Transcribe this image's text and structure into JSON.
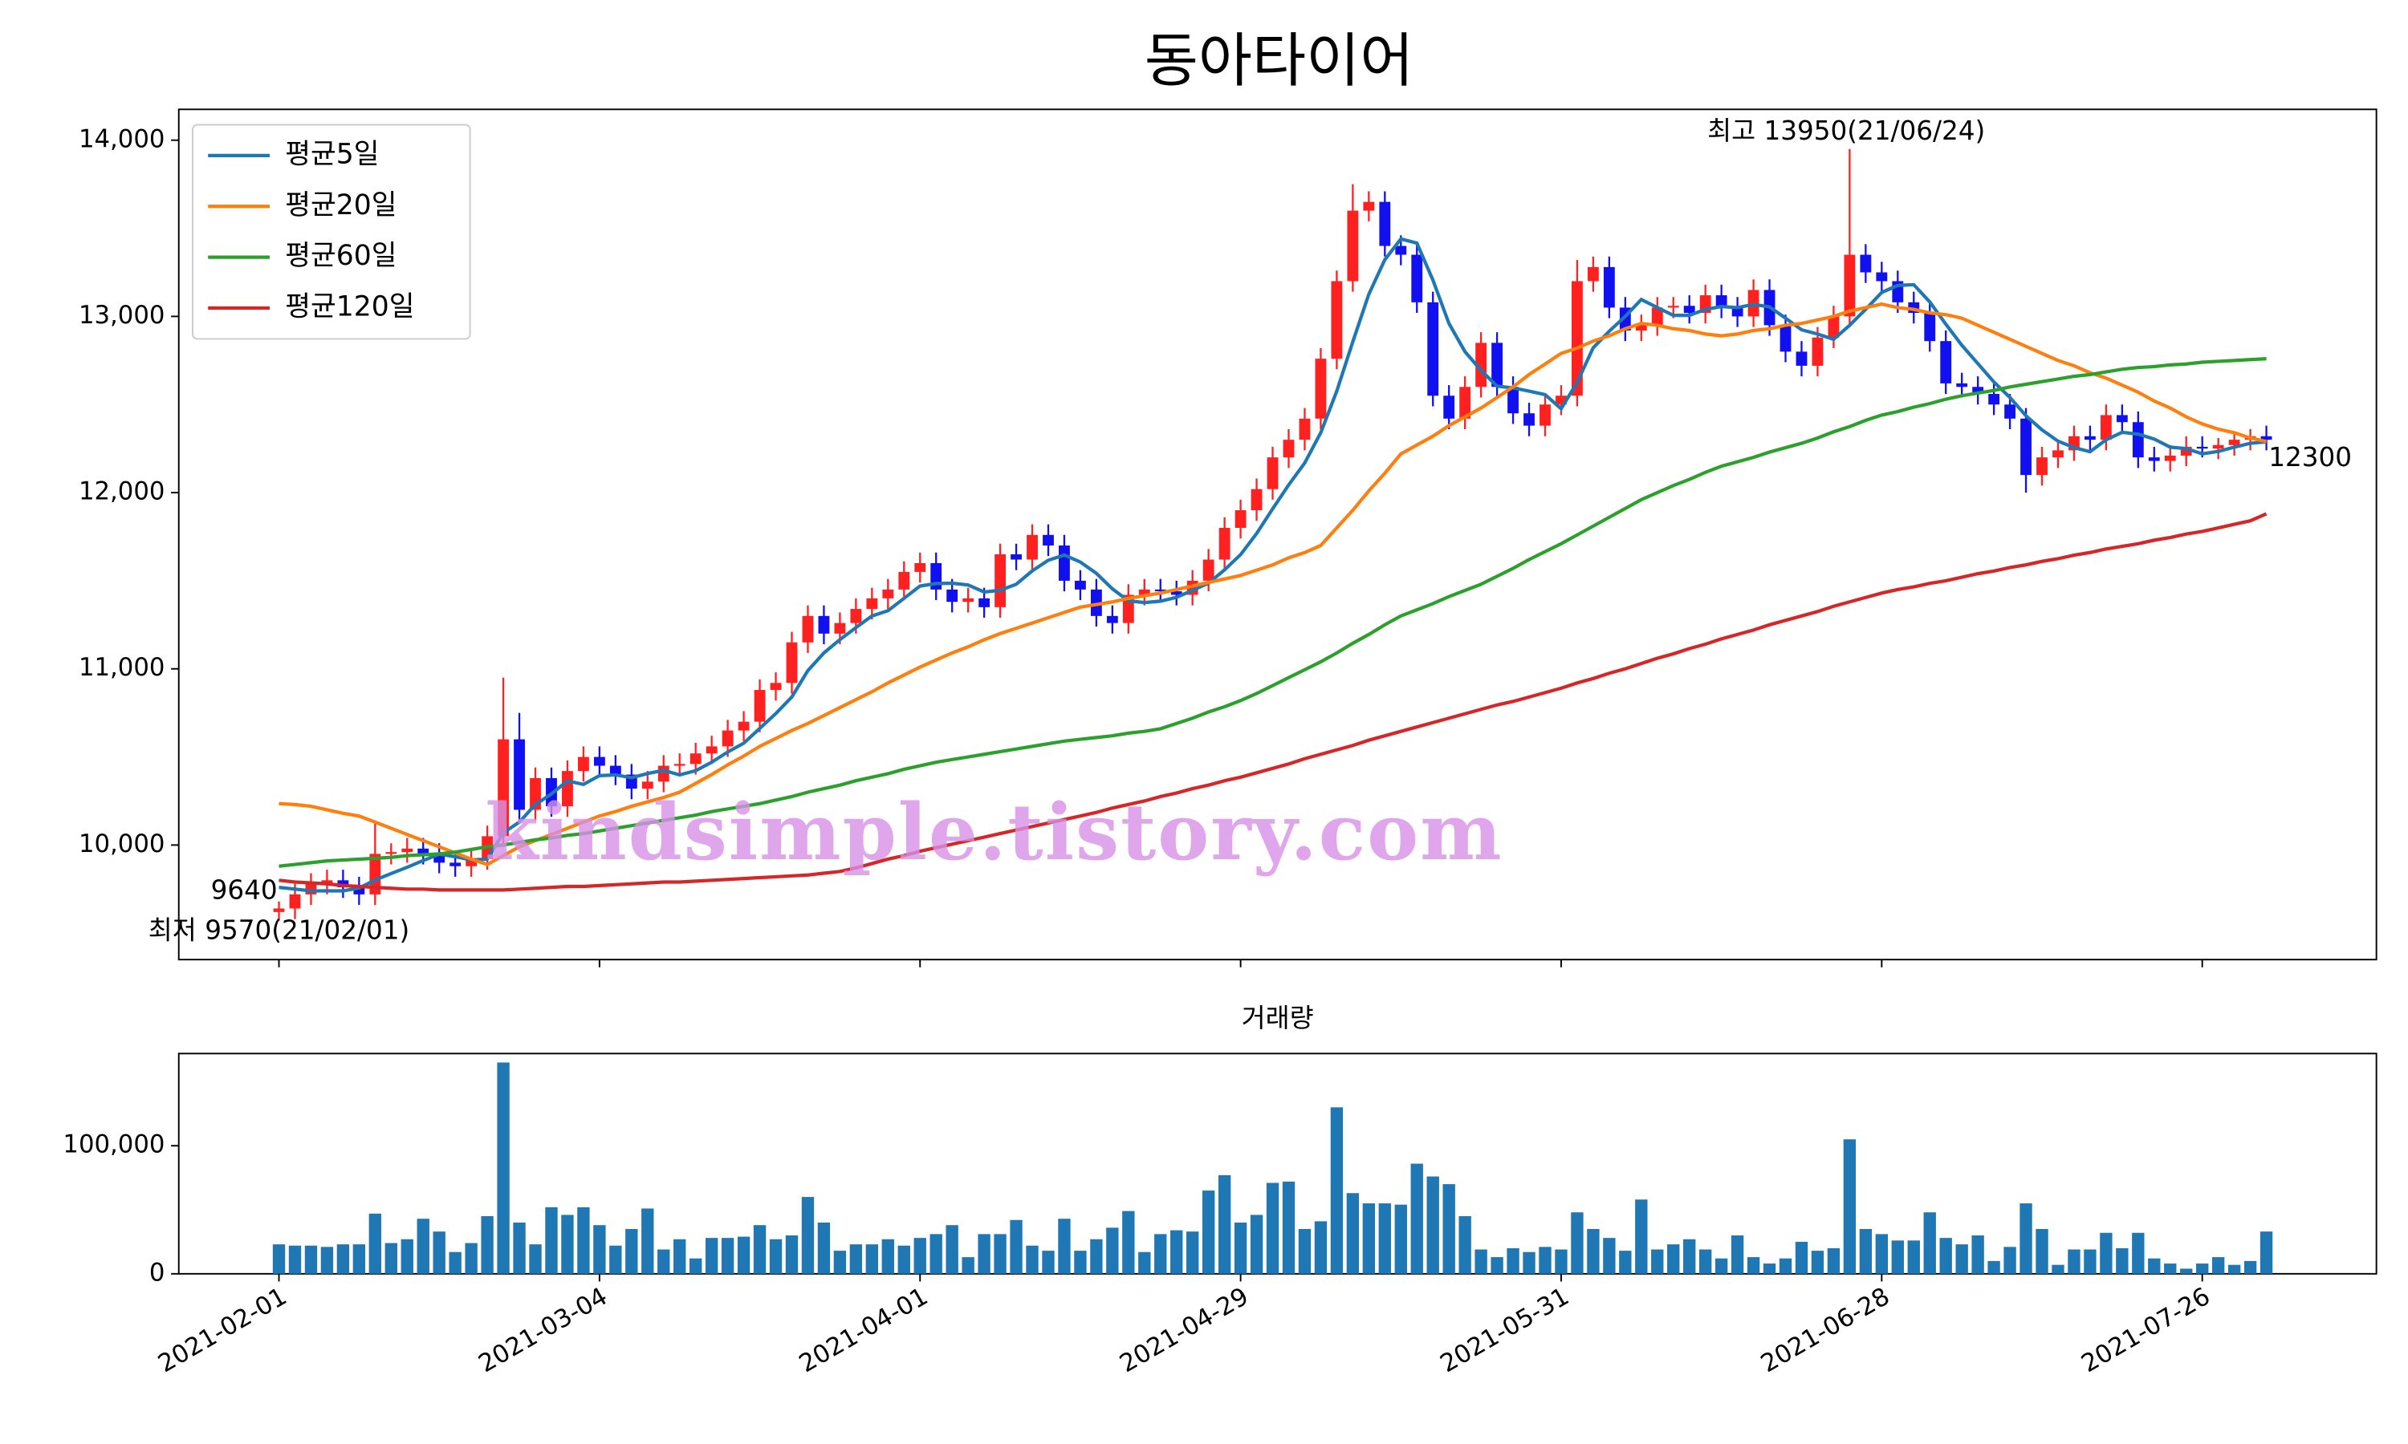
{
  "chart_data": {
    "type": "candlestick",
    "title": "동아타이어",
    "categories": [
      "2021-02-01",
      null,
      null,
      null,
      null,
      null,
      null,
      null,
      null,
      null,
      null,
      null,
      null,
      null,
      null,
      null,
      null,
      null,
      null,
      null,
      "2021-03-04",
      null,
      null,
      null,
      null,
      null,
      null,
      null,
      null,
      null,
      null,
      null,
      null,
      null,
      null,
      null,
      null,
      null,
      null,
      null,
      "2021-04-01",
      null,
      null,
      null,
      null,
      null,
      null,
      null,
      null,
      null,
      null,
      null,
      null,
      null,
      null,
      null,
      null,
      null,
      null,
      null,
      "2021-04-29",
      null,
      null,
      null,
      null,
      null,
      null,
      null,
      null,
      null,
      null,
      null,
      null,
      null,
      null,
      null,
      null,
      null,
      null,
      null,
      "2021-05-31",
      null,
      null,
      null,
      null,
      null,
      null,
      null,
      null,
      null,
      null,
      null,
      null,
      null,
      null,
      null,
      null,
      null,
      null,
      null,
      "2021-06-28",
      null,
      null,
      null,
      null,
      null,
      null,
      null,
      null,
      null,
      null,
      null,
      null,
      null,
      null,
      null,
      null,
      null,
      null,
      null,
      "2021-07-26",
      null,
      null,
      null,
      null
    ],
    "open": [
      9620,
      9640,
      9720,
      9780,
      9800,
      9760,
      9720,
      9950,
      9960,
      9980,
      9950,
      9900,
      9880,
      9920,
      10050,
      10600,
      10200,
      10380,
      10220,
      10420,
      10500,
      10450,
      10400,
      10320,
      10360,
      10450,
      10460,
      10520,
      10560,
      10650,
      10700,
      10880,
      10920,
      11150,
      11300,
      11200,
      11260,
      11340,
      11400,
      11450,
      11550,
      11600,
      11450,
      11380,
      11400,
      11350,
      11650,
      11620,
      11760,
      11700,
      11500,
      11450,
      11300,
      11260,
      11420,
      11450,
      11440,
      11420,
      11500,
      11620,
      11800,
      11900,
      12020,
      12200,
      12300,
      12420,
      12760,
      13200,
      13600,
      13650,
      13400,
      13350,
      13080,
      12550,
      12420,
      12600,
      12850,
      12600,
      12450,
      12380,
      12500,
      12550,
      13200,
      13280,
      13050,
      12920,
      12950,
      13050,
      13060,
      13020,
      13120,
      13050,
      13000,
      13150,
      12950,
      12800,
      12720,
      12880,
      13000,
      13350,
      13250,
      13200,
      13080,
      13020,
      12860,
      12620,
      12600,
      12560,
      12500,
      12420,
      12100,
      12200,
      12240,
      12320,
      12300,
      12440,
      12400,
      12200,
      12180,
      12210,
      12260,
      12250,
      12270,
      12300,
      12320
    ],
    "high": [
      9680,
      9780,
      9840,
      9860,
      9860,
      9820,
      10140,
      10010,
      10040,
      10040,
      10010,
      9960,
      9980,
      10110,
      10950,
      10750,
      10440,
      10440,
      10480,
      10560,
      10560,
      10510,
      10460,
      10420,
      10510,
      10520,
      10580,
      10620,
      10710,
      10760,
      10940,
      10980,
      11210,
      11360,
      11360,
      11320,
      11400,
      11460,
      11510,
      11610,
      11660,
      11660,
      11510,
      11460,
      11460,
      11710,
      11710,
      11820,
      11820,
      11760,
      11560,
      11510,
      11360,
      11480,
      11510,
      11510,
      11500,
      11560,
      11680,
      11860,
      11960,
      12080,
      12260,
      12360,
      12480,
      12820,
      13260,
      13750,
      13710,
      13710,
      13460,
      13410,
      13140,
      12610,
      12660,
      12910,
      12910,
      12660,
      12510,
      12560,
      12610,
      13320,
      13340,
      13340,
      13110,
      13010,
      13110,
      13110,
      13120,
      13180,
      13180,
      13110,
      13210,
      13210,
      13010,
      12860,
      12940,
      13060,
      13950,
      13410,
      13310,
      13260,
      13140,
      13080,
      12920,
      12680,
      12660,
      12620,
      12560,
      12480,
      12260,
      12300,
      12380,
      12380,
      12500,
      12500,
      12460,
      12260,
      12270,
      12320,
      12320,
      12310,
      12330,
      12360,
      12380
    ],
    "low": [
      9570,
      9580,
      9660,
      9720,
      9700,
      9660,
      9660,
      9890,
      9900,
      9890,
      9840,
      9820,
      9820,
      9860,
      9990,
      10140,
      10140,
      10160,
      10160,
      10360,
      10390,
      10340,
      10260,
      10260,
      10300,
      10390,
      10400,
      10460,
      10500,
      10590,
      10640,
      10820,
      10860,
      11090,
      11140,
      11140,
      11200,
      11280,
      11340,
      11390,
      11490,
      11390,
      11320,
      11320,
      11290,
      11290,
      11560,
      11560,
      11640,
      11440,
      11390,
      11240,
      11200,
      11200,
      11360,
      11390,
      11360,
      11360,
      11440,
      11560,
      11740,
      11840,
      11960,
      12140,
      12240,
      12360,
      12700,
      13140,
      13540,
      13340,
      13290,
      13020,
      12490,
      12360,
      12360,
      12540,
      12540,
      12390,
      12320,
      12320,
      12440,
      12490,
      13140,
      12990,
      12860,
      12860,
      12890,
      12990,
      12960,
      12960,
      12990,
      12940,
      12940,
      12890,
      12740,
      12660,
      12660,
      12820,
      12940,
      13190,
      13140,
      13020,
      12960,
      12800,
      12560,
      12540,
      12500,
      12440,
      12360,
      12000,
      12040,
      12140,
      12180,
      12240,
      12240,
      12340,
      12140,
      12120,
      12120,
      12150,
      12200,
      12190,
      12210,
      12240,
      12240
    ],
    "close": [
      9640,
      9720,
      9780,
      9800,
      9760,
      9720,
      9950,
      9960,
      9980,
      9950,
      9900,
      9880,
      9920,
      10050,
      10600,
      10200,
      10380,
      10220,
      10420,
      10500,
      10450,
      10400,
      10320,
      10360,
      10450,
      10460,
      10520,
      10560,
      10650,
      10700,
      10880,
      10920,
      11150,
      11300,
      11200,
      11260,
      11340,
      11400,
      11450,
      11550,
      11600,
      11450,
      11380,
      11400,
      11350,
      11650,
      11620,
      11760,
      11700,
      11500,
      11450,
      11300,
      11260,
      11420,
      11450,
      11440,
      11420,
      11500,
      11620,
      11800,
      11900,
      12020,
      12200,
      12300,
      12420,
      12760,
      13200,
      13600,
      13650,
      13400,
      13350,
      13080,
      12550,
      12420,
      12600,
      12850,
      12600,
      12450,
      12380,
      12500,
      12550,
      13200,
      13280,
      13050,
      12920,
      12950,
      13050,
      13060,
      13020,
      13120,
      13050,
      13000,
      13150,
      12950,
      12800,
      12720,
      12880,
      13000,
      13350,
      13250,
      13200,
      13080,
      13020,
      12860,
      12620,
      12600,
      12560,
      12500,
      12420,
      12100,
      12200,
      12240,
      12320,
      12300,
      12440,
      12400,
      12200,
      12180,
      12210,
      12260,
      12250,
      12270,
      12300,
      12320,
      12300
    ],
    "up_color": "#ff2020",
    "down_color": "#1010f0",
    "ylim": [
      9350,
      14175
    ],
    "yticks": [
      {
        "value": 10000,
        "label": "10,000"
      },
      {
        "value": 11000,
        "label": "11,000"
      },
      {
        "value": 12000,
        "label": "12,000"
      },
      {
        "value": 13000,
        "label": "13,000"
      },
      {
        "value": 14000,
        "label": "14,000"
      }
    ],
    "legend": "upper left",
    "moving_averages": [
      {
        "name": "평균5일",
        "color": "#1f77b4",
        "values": [
          9760,
          9750,
          9740,
          9740,
          9740,
          9756,
          9802,
          9838,
          9874,
          9912,
          9948,
          9934,
          9916,
          9920,
          10070,
          10130,
          10230,
          10290,
          10364,
          10344,
          10394,
          10398,
          10382,
          10406,
          10424,
          10398,
          10422,
          10470,
          10528,
          10578,
          10662,
          10746,
          10840,
          10990,
          11090,
          11166,
          11234,
          11300,
          11330,
          11400,
          11470,
          11484,
          11486,
          11476,
          11436,
          11446,
          11480,
          11556,
          11616,
          11646,
          11606,
          11542,
          11454,
          11386,
          11376,
          11384,
          11406,
          11446,
          11486,
          11562,
          11648,
          11768,
          11908,
          12044,
          12168,
          12340,
          12576,
          12856,
          13126,
          13322,
          13440,
          13416,
          13206,
          12960,
          12800,
          12694,
          12604,
          12594,
          12576,
          12556,
          12476,
          12626,
          12822,
          12916,
          13000,
          13096,
          13050,
          13006,
          13006,
          13040,
          13056,
          13050,
          13068,
          13054,
          12990,
          12924,
          12900,
          12870,
          12950,
          13040,
          13136,
          13176,
          13180,
          13082,
          12956,
          12836,
          12732,
          12628,
          12540,
          12436,
          12356,
          12292,
          12256,
          12232,
          12300,
          12342,
          12332,
          12304,
          12258,
          12250,
          12220,
          12234,
          12258,
          12280,
          12288
        ]
      },
      {
        "name": "평균20일",
        "color": "#ff7f0e",
        "values": [
          10235,
          10230,
          10220,
          10200,
          10180,
          10165,
          10130,
          10095,
          10060,
          10025,
          9990,
          9955,
          9920,
          9890,
          9940,
          9990,
          10025,
          10060,
          10095,
          10130,
          10165,
          10190,
          10220,
          10245,
          10270,
          10300,
          10350,
          10400,
          10455,
          10505,
          10560,
          10605,
          10650,
          10690,
          10735,
          10780,
          10825,
          10870,
          10920,
          10965,
          11010,
          11050,
          11090,
          11125,
          11165,
          11200,
          11230,
          11260,
          11290,
          11320,
          11350,
          11365,
          11380,
          11400,
          11415,
          11430,
          11450,
          11470,
          11490,
          11510,
          11530,
          11560,
          11590,
          11630,
          11660,
          11700,
          11800,
          11900,
          12010,
          12110,
          12220,
          12270,
          12320,
          12380,
          12430,
          12480,
          12540,
          12600,
          12670,
          12730,
          12790,
          12820,
          12860,
          12890,
          12930,
          12960,
          12950,
          12930,
          12920,
          12900,
          12890,
          12900,
          12920,
          12930,
          12950,
          12960,
          12980,
          13000,
          13030,
          13050,
          13070,
          13050,
          13040,
          13020,
          13010,
          12990,
          12950,
          12910,
          12870,
          12830,
          12790,
          12750,
          12720,
          12680,
          12650,
          12610,
          12570,
          12520,
          12480,
          12430,
          12390,
          12360,
          12340,
          12310,
          12290
        ]
      },
      {
        "name": "평균60일",
        "color": "#2ca02c",
        "values": [
          9880,
          9890,
          9900,
          9910,
          9915,
          9920,
          9925,
          9930,
          9940,
          9945,
          9950,
          9960,
          9975,
          9990,
          10000,
          10015,
          10030,
          10040,
          10055,
          10065,
          10080,
          10095,
          10110,
          10125,
          10140,
          10155,
          10170,
          10190,
          10205,
          10220,
          10235,
          10255,
          10275,
          10300,
          10320,
          10340,
          10365,
          10385,
          10405,
          10430,
          10450,
          10470,
          10485,
          10500,
          10515,
          10530,
          10545,
          10560,
          10575,
          10590,
          10600,
          10610,
          10620,
          10635,
          10645,
          10660,
          10690,
          10720,
          10755,
          10785,
          10820,
          10860,
          10905,
          10950,
          10995,
          11040,
          11090,
          11145,
          11195,
          11250,
          11300,
          11335,
          11370,
          11410,
          11445,
          11480,
          11525,
          11570,
          11620,
          11665,
          11710,
          11760,
          11810,
          11860,
          11910,
          11960,
          12000,
          12040,
          12075,
          12115,
          12150,
          12175,
          12200,
          12230,
          12255,
          12280,
          12310,
          12345,
          12375,
          12410,
          12440,
          12460,
          12485,
          12505,
          12530,
          12550,
          12565,
          12580,
          12600,
          12615,
          12630,
          12645,
          12660,
          12670,
          12685,
          12700,
          12710,
          12715,
          12725,
          12730,
          12740,
          12745,
          12750,
          12755,
          12760
        ]
      },
      {
        "name": "평균120일",
        "color": "#d62728",
        "values": [
          9800,
          9790,
          9785,
          9780,
          9770,
          9765,
          9760,
          9755,
          9750,
          9750,
          9745,
          9745,
          9745,
          9745,
          9745,
          9750,
          9755,
          9760,
          9765,
          9765,
          9770,
          9775,
          9780,
          9785,
          9790,
          9790,
          9795,
          9800,
          9805,
          9810,
          9815,
          9820,
          9825,
          9830,
          9840,
          9850,
          9870,
          9895,
          9920,
          9940,
          9965,
          9985,
          10005,
          10025,
          10045,
          10065,
          10085,
          10105,
          10125,
          10145,
          10165,
          10185,
          10210,
          10230,
          10250,
          10275,
          10295,
          10320,
          10340,
          10365,
          10385,
          10410,
          10435,
          10460,
          10490,
          10515,
          10540,
          10565,
          10595,
          10620,
          10645,
          10670,
          10695,
          10720,
          10745,
          10770,
          10795,
          10815,
          10840,
          10865,
          10890,
          10920,
          10945,
          10975,
          11000,
          11030,
          11060,
          11085,
          11115,
          11140,
          11170,
          11195,
          11220,
          11250,
          11275,
          11300,
          11325,
          11355,
          11380,
          11405,
          11430,
          11450,
          11465,
          11485,
          11500,
          11520,
          11540,
          11555,
          11575,
          11590,
          11610,
          11625,
          11645,
          11660,
          11680,
          11695,
          11710,
          11730,
          11745,
          11765,
          11780,
          11800,
          11820,
          11840,
          11880
        ]
      }
    ],
    "high_label": "최고 13950(21/06/24)",
    "high_label_color": "#ff0000",
    "low_label": "최저 9570(21/02/01)",
    "low_label_color": "#0000ff",
    "watermark": "kindsimple.tistory.com",
    "volume": {
      "title": "거래량",
      "color": "#1f77b4",
      "ylim": [
        0,
        172000
      ],
      "yticks": [
        0,
        {
          "value": 100000,
          "label": "100,000"
        }
      ],
      "values": [
        23000,
        22000,
        22000,
        21000,
        23000,
        23000,
        47000,
        24000,
        27000,
        43000,
        33000,
        17000,
        24000,
        45000,
        165000,
        40000,
        23000,
        52000,
        46000,
        52000,
        38000,
        22000,
        35000,
        51000,
        19000,
        27000,
        12000,
        28000,
        28000,
        29000,
        38000,
        27000,
        30000,
        60000,
        40000,
        18000,
        23000,
        23000,
        27000,
        22000,
        28000,
        31000,
        38000,
        13000,
        31000,
        31000,
        42000,
        22000,
        18000,
        43000,
        18000,
        27000,
        36000,
        49000,
        17000,
        31000,
        34000,
        33000,
        65000,
        77000,
        40000,
        46000,
        71000,
        72000,
        35000,
        41000,
        130000,
        63000,
        55000,
        55000,
        54000,
        86000,
        76000,
        70000,
        45000,
        19000,
        13000,
        20000,
        17000,
        21000,
        19000,
        48000,
        35000,
        28000,
        18000,
        58000,
        19000,
        23000,
        27000,
        19000,
        12000,
        30000,
        13000,
        8000,
        12000,
        25000,
        18000,
        20000,
        105000,
        35000,
        31000,
        26000,
        26000,
        48000,
        28000,
        23000,
        30000,
        10000,
        21000,
        55000,
        35000,
        7000,
        19000,
        19000,
        32000,
        20000,
        32000,
        12000,
        8000,
        4000,
        8000,
        13000,
        7000,
        10000,
        33000
      ]
    }
  }
}
